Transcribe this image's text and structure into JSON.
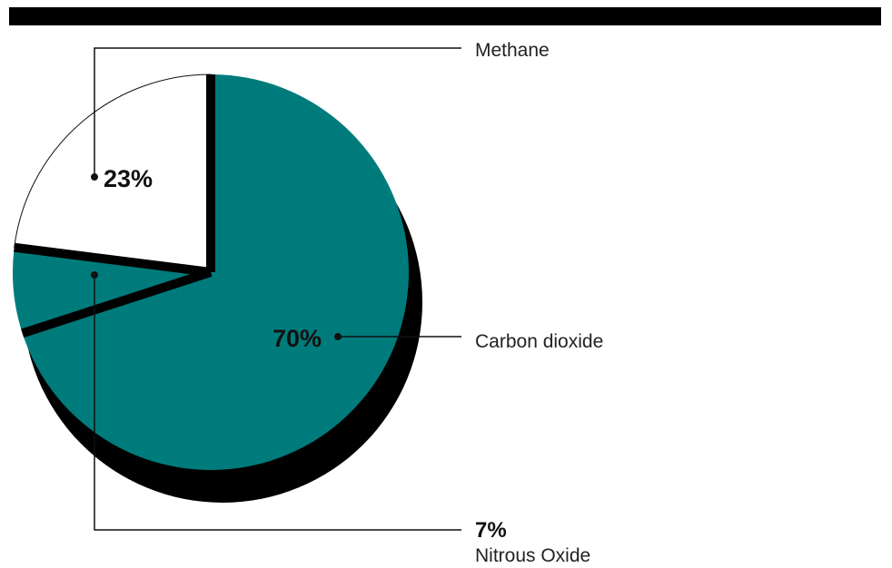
{
  "chart_data": {
    "type": "pie",
    "slices": [
      {
        "label": "Carbon dioxide",
        "value": 70,
        "value_label": "70%",
        "color": "#007b7b"
      },
      {
        "label": "Nitrous Oxide",
        "value": 7,
        "value_label": "7%",
        "color": "#007b7b"
      },
      {
        "label": "Methane",
        "value": 23,
        "value_label": "23%",
        "color": "#ffffff"
      }
    ]
  },
  "colors": {
    "top_bar": "#000000",
    "shadow": "#000000",
    "teal": "#007b7b",
    "white": "#ffffff"
  }
}
